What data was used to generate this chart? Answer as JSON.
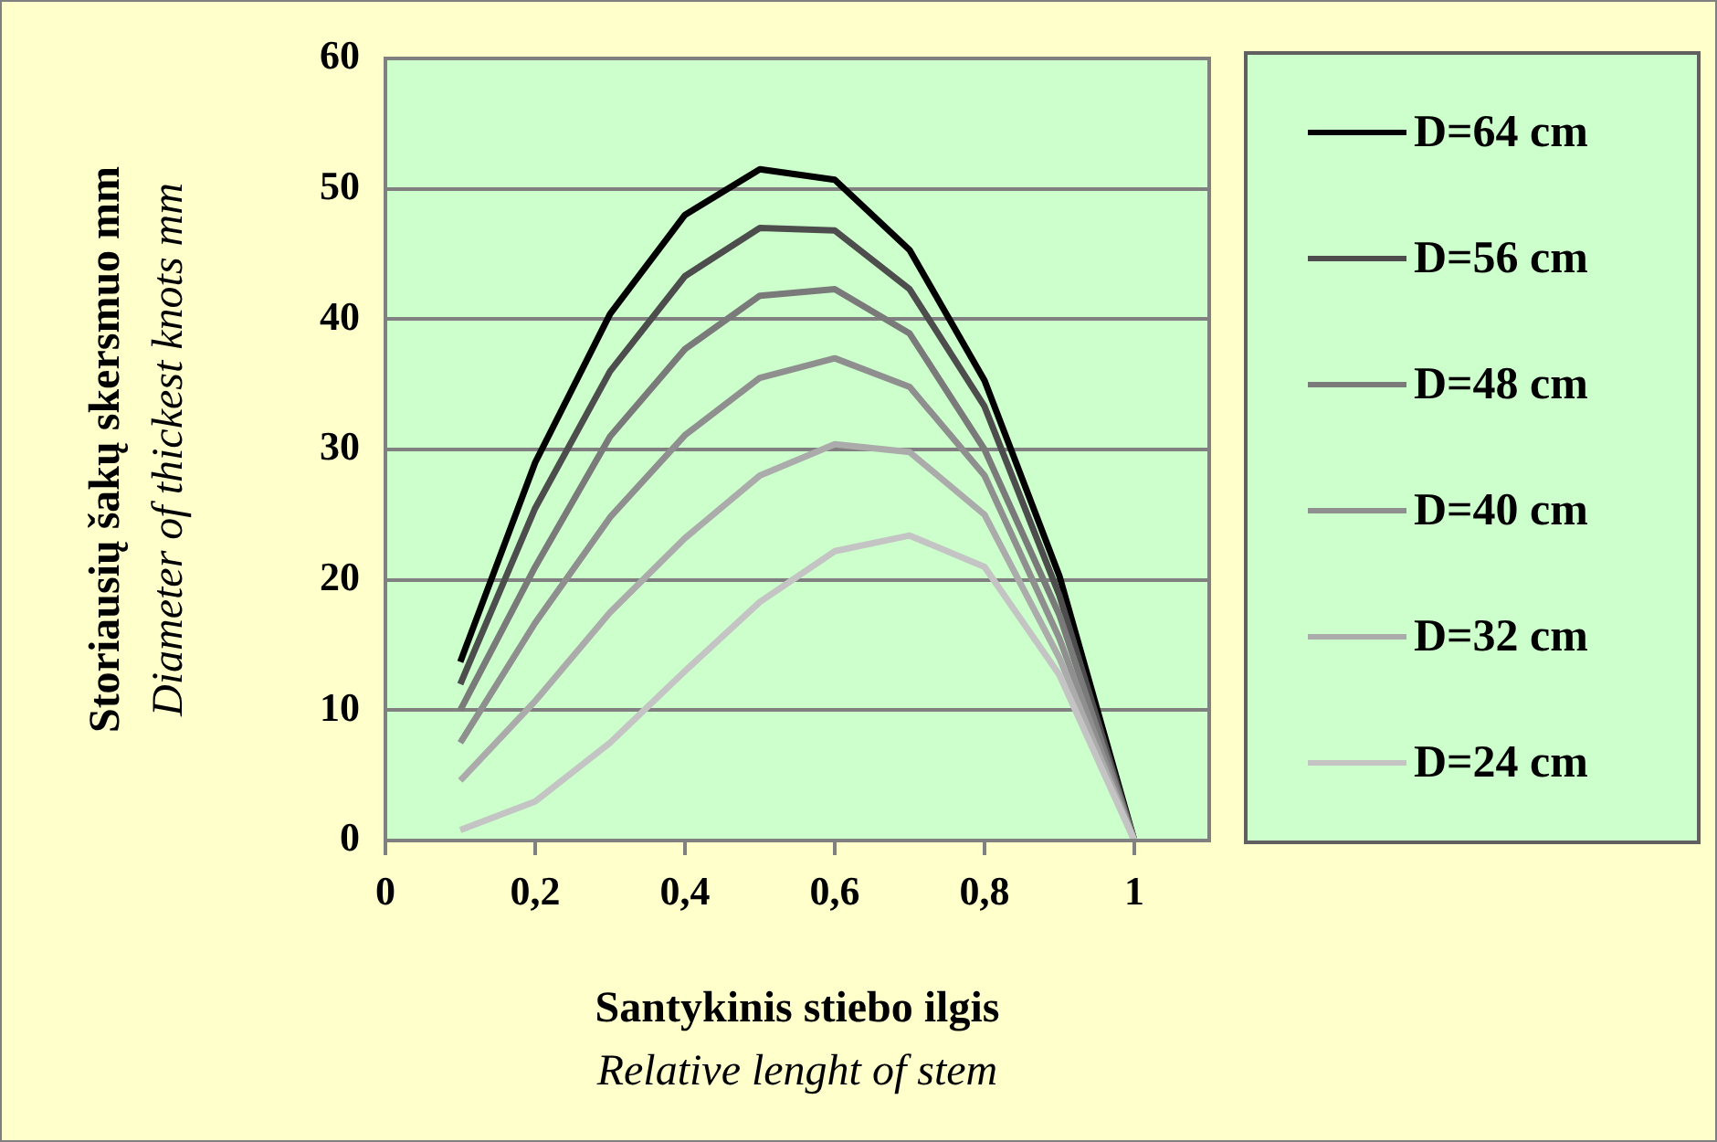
{
  "chart_data": {
    "type": "line",
    "xlabel": "Santykinis stiebo ilgis\nRelative lenght of stem",
    "ylabel": "Storiausių šakų skersmuo mm\nDiameter of thickest knots mm",
    "x": [
      0.1,
      0.2,
      0.3,
      0.4,
      0.5,
      0.6,
      0.7,
      0.8,
      0.9,
      1
    ],
    "series": [
      {
        "name": "D=64 cm",
        "color": "#000000",
        "values": [
          13.7,
          29,
          40.4,
          48,
          51.5,
          50.7,
          45.3,
          35.3,
          20.3,
          0
        ]
      },
      {
        "name": "D=56 cm",
        "color": "#4d4d4d",
        "values": [
          12,
          25.5,
          36,
          43.3,
          47,
          46.8,
          42.3,
          33.3,
          18.8,
          0
        ]
      },
      {
        "name": "D=48 cm",
        "color": "#7a7a7a",
        "values": [
          10,
          21,
          31,
          37.7,
          41.8,
          42.3,
          38.9,
          30,
          17.3,
          0
        ]
      },
      {
        "name": "D=40 cm",
        "color": "#8f8f8f",
        "values": [
          7.5,
          16.7,
          24.8,
          31.1,
          35.5,
          37,
          34.8,
          28,
          15.5,
          0
        ]
      },
      {
        "name": "D=32 cm",
        "color": "#ababab",
        "values": [
          4.6,
          10.7,
          17.5,
          23.2,
          28,
          30.4,
          29.8,
          25,
          14,
          0
        ]
      },
      {
        "name": "D=24 cm",
        "color": "#c4c4c4",
        "values": [
          0.8,
          3,
          7.5,
          13,
          18.3,
          22.2,
          23.4,
          21,
          12.7,
          0
        ]
      }
    ],
    "xlim": [
      0,
      1.1
    ],
    "xticks": [
      0,
      {
        "value": 0.2,
        "label": "0,2"
      },
      {
        "value": 0.4,
        "label": "0,4"
      },
      {
        "value": 0.6,
        "label": "0,6"
      },
      {
        "value": 0.8,
        "label": "0,8"
      },
      1
    ],
    "ylim": [
      0,
      60
    ],
    "yticks": [
      0,
      10,
      20,
      30,
      40,
      50,
      60
    ],
    "grid": "y",
    "legend": "right",
    "marker": "none",
    "line_style": "solid"
  }
}
